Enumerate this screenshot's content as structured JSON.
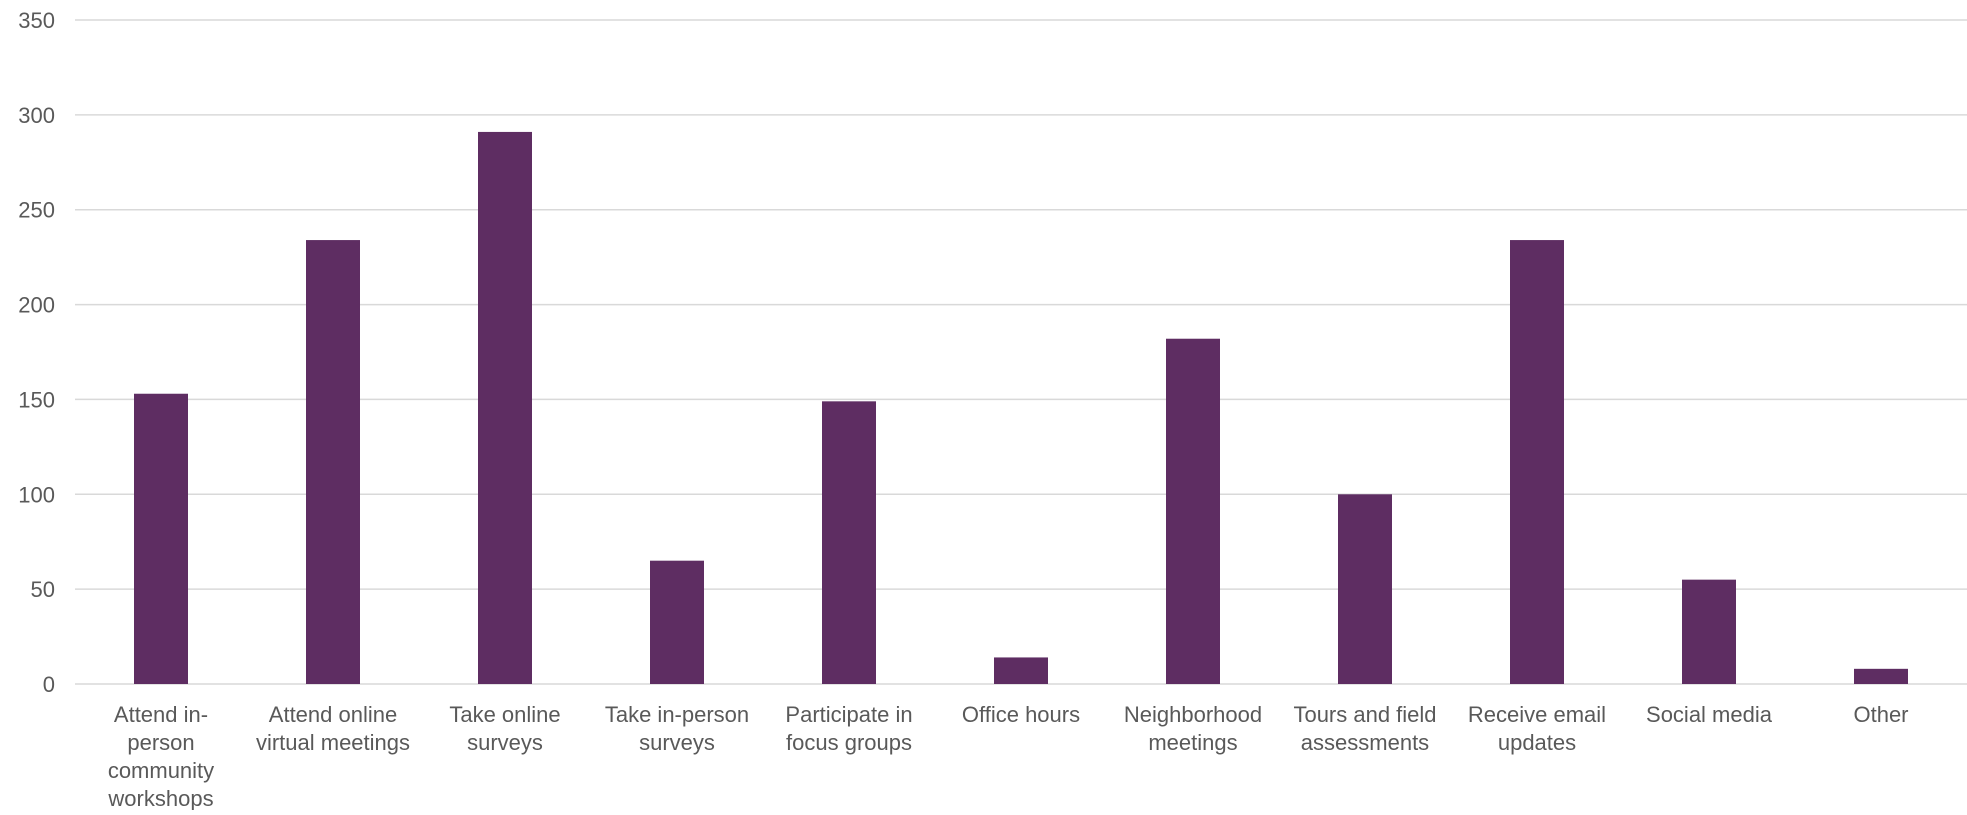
{
  "chart_data": {
    "type": "bar",
    "title": "",
    "xlabel": "",
    "ylabel": "",
    "ylim": [
      0,
      350
    ],
    "yticks": [
      0,
      50,
      100,
      150,
      200,
      250,
      300,
      350
    ],
    "grid": true,
    "legend": "none",
    "bar_color": "#5e2d62",
    "categories": [
      [
        "Attend in-",
        "person",
        "community",
        "workshops"
      ],
      [
        "Attend online",
        "virtual meetings"
      ],
      [
        "Take online",
        "surveys"
      ],
      [
        "Take in-person",
        "surveys"
      ],
      [
        "Participate in",
        "focus groups"
      ],
      [
        "Office hours"
      ],
      [
        "Neighborhood",
        "meetings"
      ],
      [
        "Tours and field",
        "assessments"
      ],
      [
        "Receive email",
        "updates"
      ],
      [
        "Social media"
      ],
      [
        "Other"
      ]
    ],
    "values": [
      153,
      234,
      291,
      65,
      149,
      14,
      182,
      100,
      234,
      55,
      8
    ]
  }
}
